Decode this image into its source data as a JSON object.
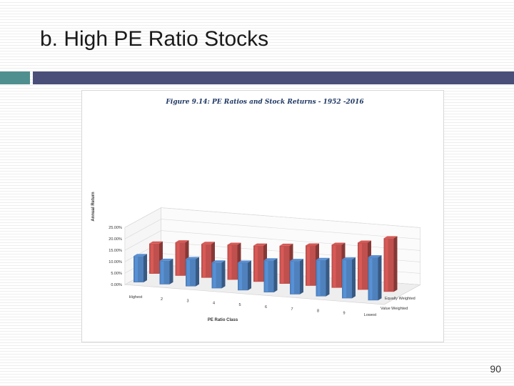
{
  "slide": {
    "title": "b. High PE Ratio Stocks",
    "page_number": "90"
  },
  "colors": {
    "accent_left": "#4f8f8f",
    "accent_right": "#4a4f7a",
    "equal_weighted": "#c0504d",
    "value_weighted": "#4f81bd"
  },
  "chart_data": {
    "type": "bar",
    "title": "Figure 9.14: PE Ratios and Stock Returns - 1952 -2016",
    "xlabel": "PE Ratio Class",
    "ylabel": "Annual Return",
    "categories": [
      "Highest",
      "2",
      "3",
      "4",
      "5",
      "6",
      "7",
      "8",
      "9",
      "Lowest"
    ],
    "y_ticks": [
      "0.00%",
      "5.00%",
      "10.00%",
      "15.00%",
      "20.00%",
      "25.00%"
    ],
    "ylim": [
      0,
      25
    ],
    "series": [
      {
        "name": "Equally Weighted",
        "values": [
          13.2,
          14.6,
          14.8,
          15.3,
          15.8,
          16.6,
          17.6,
          18.8,
          20.6,
          23.4
        ]
      },
      {
        "name": "Value Weighted",
        "values": [
          11.5,
          10.3,
          11.9,
          11.3,
          12.1,
          14.0,
          14.6,
          15.9,
          17.0,
          18.8
        ]
      }
    ],
    "grid": true,
    "legend": "bottom-right",
    "projection": "3d"
  }
}
